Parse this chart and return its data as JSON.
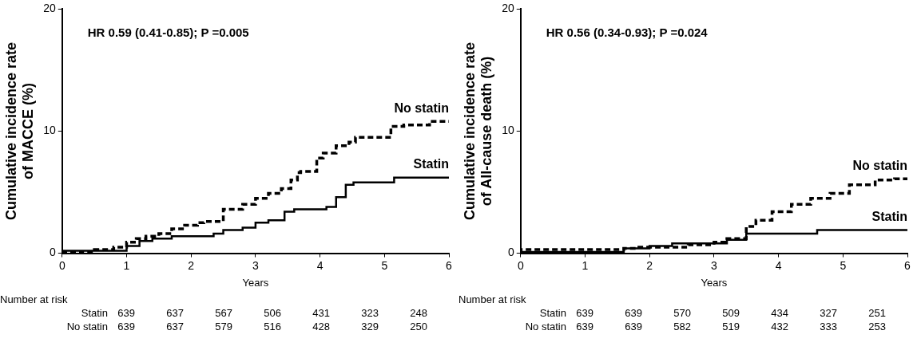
{
  "chart_data": [
    {
      "type": "step",
      "xlabel": "Years",
      "ylabel": "Cumulative incidence rate of MACCE (%)",
      "xlim": [
        0,
        6
      ],
      "ylim": [
        0,
        20
      ],
      "xticks": [
        0,
        1,
        2,
        3,
        4,
        5,
        6
      ],
      "yticks": [
        0,
        10,
        20
      ],
      "grid": false,
      "legend": false,
      "marker": "none",
      "annotations": [
        "HR 0.59 (0.41-0.85); P =0.005",
        "Number at risk",
        "Statin 639 637 567 506 431 323 248",
        "No statin 639 637 579 516 428 329 250"
      ],
      "series": [
        {
          "name": "No statin",
          "color": "#000000",
          "line_style": "dashed",
          "x": [
            0,
            0.3,
            0.5,
            0.8,
            1.0,
            1.15,
            1.3,
            1.5,
            1.7,
            1.9,
            2.1,
            2.2,
            2.5,
            2.8,
            3.0,
            3.2,
            3.4,
            3.55,
            3.65,
            3.7,
            3.95,
            4.05,
            4.25,
            4.45,
            4.55,
            5.1,
            5.3,
            5.7,
            6.0
          ],
          "values": [
            0,
            0.05,
            0.1,
            0.3,
            0.5,
            0.9,
            1.2,
            1.4,
            1.6,
            2.0,
            2.3,
            2.5,
            2.6,
            3.6,
            4.0,
            4.5,
            4.9,
            5.3,
            6.0,
            6.6,
            6.7,
            7.8,
            8.2,
            8.8,
            9.1,
            9.5,
            10.4,
            10.5,
            10.8
          ]
        },
        {
          "name": "Statin",
          "color": "#000000",
          "line_style": "solid",
          "x": [
            0,
            1.0,
            1.2,
            1.4,
            1.7,
            2.35,
            2.5,
            2.8,
            3.0,
            3.2,
            3.45,
            3.6,
            4.1,
            4.25,
            4.4,
            4.52,
            5.15,
            5.3,
            6.0
          ],
          "values": [
            0,
            0.2,
            0.6,
            1.0,
            1.2,
            1.4,
            1.6,
            1.9,
            2.1,
            2.5,
            2.7,
            3.4,
            3.6,
            3.8,
            4.6,
            5.6,
            5.8,
            6.2,
            6.2
          ]
        }
      ]
    },
    {
      "type": "step",
      "xlabel": "Years",
      "ylabel": "Cumulative incidence rate of All-cause death (%)",
      "xlim": [
        0,
        6
      ],
      "ylim": [
        0,
        20
      ],
      "xticks": [
        0,
        1,
        2,
        3,
        4,
        5,
        6
      ],
      "yticks": [
        0,
        10,
        20
      ],
      "grid": false,
      "legend": false,
      "marker": "none",
      "annotations": [
        "HR 0.56 (0.34-0.93); P =0.024",
        "Number at risk",
        "Statin 639 639 570 509 434 327 251",
        "No statin 639 639 582 519 432 333 253"
      ],
      "series": [
        {
          "name": "No statin",
          "color": "#000000",
          "line_style": "dashed",
          "x": [
            0,
            1.15,
            1.6,
            1.8,
            2.6,
            3.0,
            3.2,
            3.5,
            3.65,
            3.9,
            4.2,
            4.5,
            4.8,
            5.1,
            5.5,
            5.8,
            6.0
          ],
          "values": [
            0,
            0.3,
            0.3,
            0.4,
            0.5,
            0.7,
            0.9,
            1.2,
            2.2,
            2.7,
            3.4,
            4.0,
            4.5,
            4.9,
            5.6,
            6.0,
            6.1
          ]
        },
        {
          "name": "Statin",
          "color": "#000000",
          "line_style": "solid",
          "x": [
            0,
            1.6,
            2.0,
            2.35,
            3.2,
            3.5,
            4.6,
            5.45,
            6.0
          ],
          "values": [
            0,
            0.1,
            0.4,
            0.6,
            0.8,
            1.1,
            1.6,
            1.9,
            1.9
          ]
        }
      ]
    }
  ]
}
